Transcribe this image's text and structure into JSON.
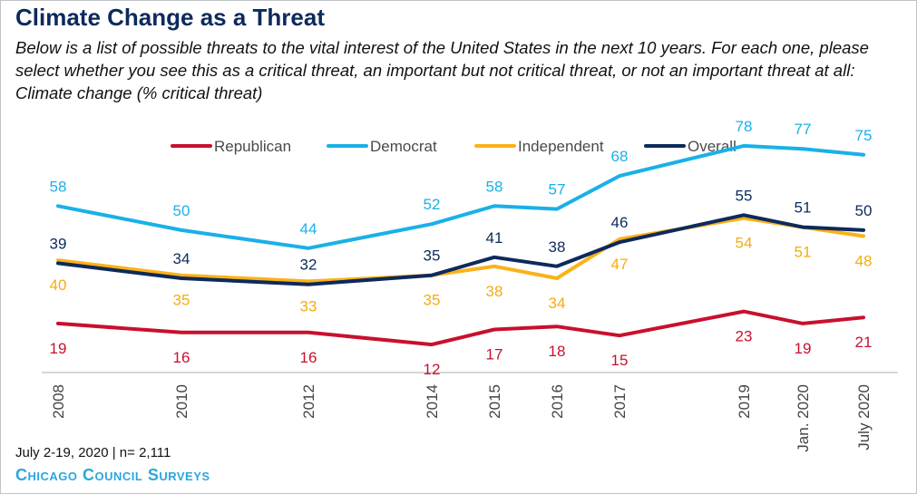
{
  "title": "Climate Change as a Threat",
  "subtitle": {
    "text": "Below is a list of possible threats to the vital interest of the United States in the next 10 years. For each one, please select whether you see this as a critical threat, an important but not critical threat, or not an important threat at all:",
    "topic": "Climate change",
    "unit": "(% critical threat)"
  },
  "footer": {
    "note": "July 2-19, 2020 | n= 2,111",
    "source": "Chicago Council Surveys"
  },
  "chart_data": {
    "type": "line",
    "x": [
      "2008",
      "2010",
      "2012",
      "2014",
      "2015",
      "2016",
      "2017",
      "2019",
      "Jan. 2020",
      "July 2020"
    ],
    "ylim": [
      0,
      90
    ],
    "grid": false,
    "legend_position": "top-center",
    "series": [
      {
        "name": "Republican",
        "color": "#c8102e",
        "values": [
          19,
          16,
          16,
          12,
          17,
          18,
          15,
          23,
          19,
          21
        ]
      },
      {
        "name": "Democrat",
        "color": "#1ab0e8",
        "values": [
          58,
          50,
          44,
          52,
          58,
          57,
          68,
          78,
          77,
          75
        ]
      },
      {
        "name": "Independent",
        "color": "#fbb217",
        "values": [
          40,
          35,
          33,
          35,
          38,
          34,
          47,
          54,
          51,
          48
        ]
      },
      {
        "name": "Overall",
        "color": "#0d2a5c",
        "values": [
          39,
          34,
          32,
          35,
          41,
          38,
          46,
          55,
          51,
          50
        ]
      }
    ]
  }
}
